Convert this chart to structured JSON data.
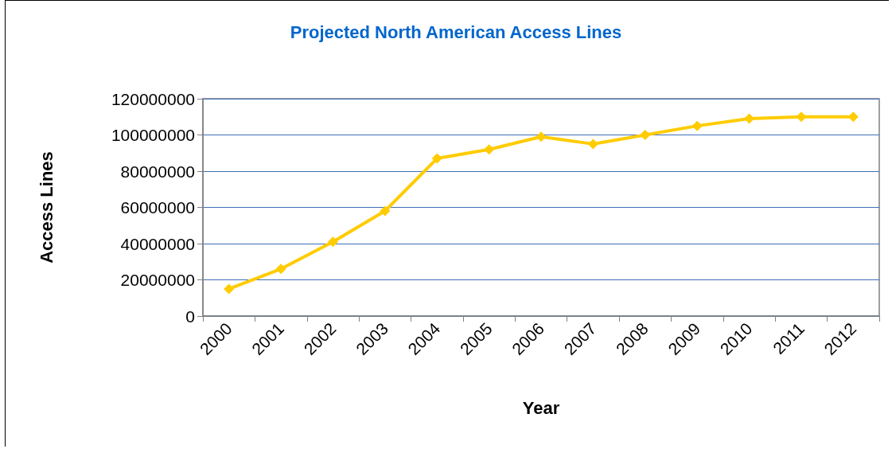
{
  "chart_data": {
    "type": "line",
    "title": "Projected North American Access Lines",
    "xlabel": "Year",
    "ylabel": "Access Lines",
    "categories": [
      "2000",
      "2001",
      "2002",
      "2003",
      "2004",
      "2005",
      "2006",
      "2007",
      "2008",
      "2009",
      "2010",
      "2011",
      "2012"
    ],
    "series": [
      {
        "color": "#ffcc00",
        "values": [
          15000000,
          26000000,
          41000000,
          58000000,
          87000000,
          92000000,
          99000000,
          95000000,
          100000000,
          105000000,
          109000000,
          110000000,
          110000000
        ]
      }
    ],
    "ylim": [
      0,
      120000000
    ],
    "yticks": [
      0,
      20000000,
      40000000,
      60000000,
      80000000,
      100000000,
      120000000
    ],
    "grid": "y",
    "marker": "diamond",
    "line_style": "solid"
  }
}
